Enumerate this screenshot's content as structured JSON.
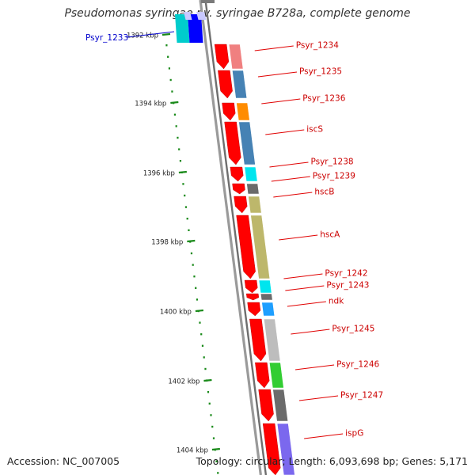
{
  "title": "Pseudomonas syringae pv. syringae B728a, complete genome",
  "footer": {
    "accession": "Accession: NC_007005",
    "stats": "Topology: circular; Length: 6,093,698 bp; Genes: 5,171"
  },
  "colors": {
    "backbone": "#808080",
    "cds_arrow": "#ff0000",
    "ruler": "#1a8a1a",
    "label_red": "#cc0000",
    "label_blue": "#0000cc"
  },
  "ruler_ticks": [
    {
      "label": "1392 kbp"
    },
    {
      "label": "1394 kbp"
    },
    {
      "label": "1396 kbp"
    },
    {
      "label": "1398 kbp"
    },
    {
      "label": "1400 kbp"
    },
    {
      "label": "1402 kbp"
    },
    {
      "label": "1404 kbp"
    }
  ],
  "left_labels": [
    {
      "label": "Psyr_1233",
      "color": "#0000cc"
    }
  ],
  "gene_labels": [
    {
      "label": "Psyr_1234"
    },
    {
      "label": "Psyr_1235"
    },
    {
      "label": "Psyr_1236"
    },
    {
      "label": "iscS"
    },
    {
      "label": "Psyr_1238"
    },
    {
      "label": "Psyr_1239"
    },
    {
      "label": "hscB"
    },
    {
      "label": "hscA"
    },
    {
      "label": "Psyr_1242"
    },
    {
      "label": "Psyr_1243"
    },
    {
      "label": "ndk"
    },
    {
      "label": "Psyr_1245"
    },
    {
      "label": "Psyr_1246"
    },
    {
      "label": "Psyr_1247"
    },
    {
      "label": "ispG"
    }
  ],
  "cog_colors": [
    "#f08080",
    "#4682b4",
    "#ff8c00",
    "#4682b4",
    "#00e5ee",
    "#6b6b6b",
    "#bdb76b",
    "#bdb76b",
    "#00e5ee",
    "#6b6b6b",
    "#1e9fff",
    "#bdbdbd",
    "#32cd32",
    "#6b6b6b",
    "#7b68ee"
  ]
}
